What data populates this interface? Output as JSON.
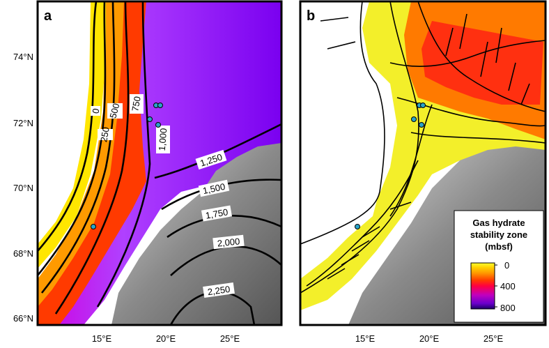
{
  "panels": [
    {
      "label": "a",
      "y_ticks": [
        "74°N",
        "72°N",
        "70°N",
        "68°N",
        "66°N"
      ],
      "x_ticks": [
        "15°E",
        "20°E",
        "25°E"
      ],
      "contour_labels": [
        "0",
        "250",
        "500",
        "750",
        "1,000",
        "1,250",
        "1,500",
        "1,750",
        "2,000",
        "2,250"
      ]
    },
    {
      "label": "b",
      "y_ticks": [],
      "x_ticks": [
        "15°E",
        "20°E",
        "25°E"
      ],
      "legend": {
        "title_lines": [
          "Gas hydrate",
          "stability zone",
          "(mbsf)"
        ],
        "ticks": [
          "0",
          "400",
          "800"
        ],
        "colors": [
          "#1a0066",
          "#6a00cc",
          "#c000c0",
          "#ff0040",
          "#ff3a00",
          "#ff9900",
          "#ffd000",
          "#ffff30"
        ]
      }
    }
  ],
  "sites_marker_color": "#29a3c9",
  "colors": {
    "hydrate_high": "#ffff30",
    "hydrate_mid": "#ff3a00",
    "hydrate_deep": "#7a00e0",
    "land": "#9a9a9a"
  }
}
